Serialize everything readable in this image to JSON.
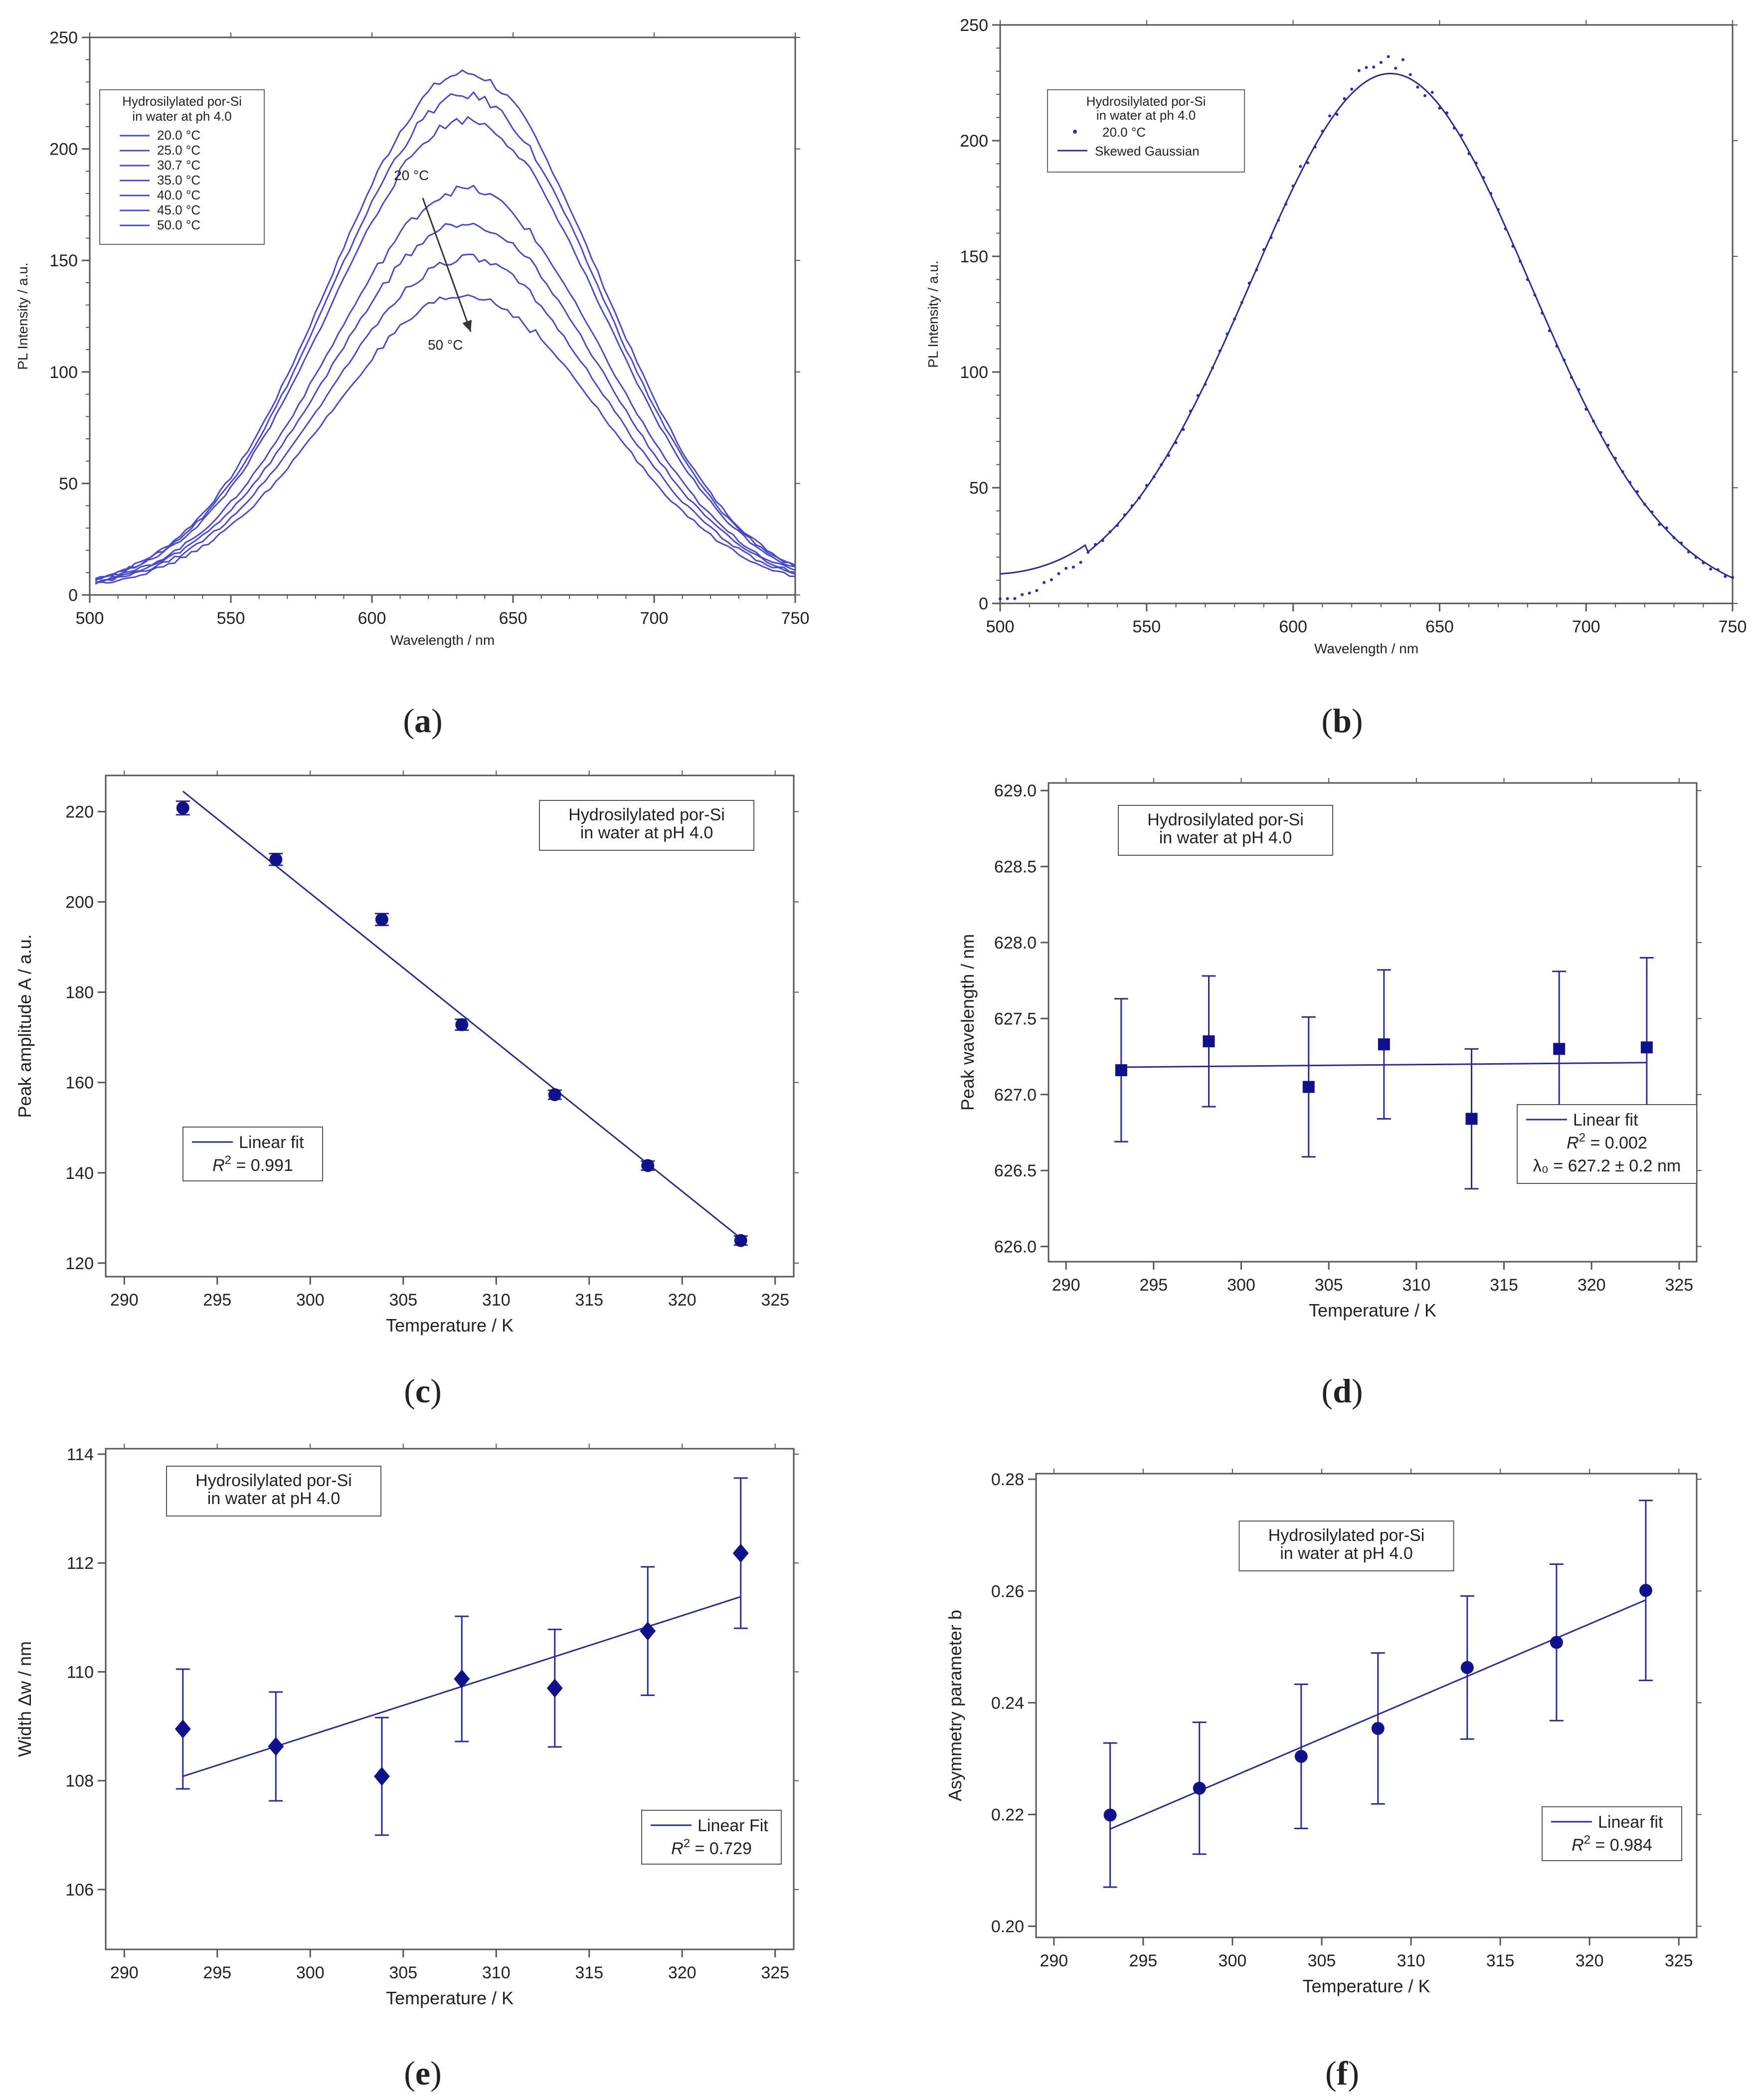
{
  "figure": {
    "panels_order": [
      "a",
      "b",
      "c",
      "d",
      "e",
      "f"
    ]
  },
  "chart_data": [
    {
      "id": "a",
      "caption": {
        "open": "(",
        "letter": "a",
        "close": ")"
      },
      "type": "line",
      "xlabel": "Wavelength / nm",
      "ylabel": "PL Intensity / a.u.",
      "xlim": [
        500,
        750
      ],
      "ylim": [
        0,
        250
      ],
      "xticks": [
        500,
        550,
        600,
        650,
        700,
        750
      ],
      "yticks": [
        0,
        50,
        100,
        150,
        200,
        250
      ],
      "legend": {
        "title_lines": [
          "Hydrosilylated por-Si",
          "in water at ph 4.0"
        ],
        "entries": [
          "20.0 °C",
          "25.0 °C",
          "30.7 °C",
          "35.0 °C",
          "40.0 °C",
          "45.0 °C",
          "50.0 °C"
        ],
        "placement": "top-left"
      },
      "annotations": [
        {
          "text": "20 °C",
          "x": 614,
          "y": 186
        },
        {
          "text": "50 °C",
          "x": 626,
          "y": 110
        }
      ],
      "arrow": {
        "from": [
          618,
          178
        ],
        "to": [
          635,
          118
        ]
      },
      "spectra": {
        "center": 627,
        "sigma": 48,
        "skew": 0.22,
        "amplitudes": [
          232,
          222,
          211,
          180,
          165,
          149,
          132
        ]
      },
      "color": "#4a4ac8"
    },
    {
      "id": "b",
      "caption": {
        "open": "(",
        "letter": "b",
        "close": ")"
      },
      "type": "line",
      "xlabel": "Wavelength / nm",
      "ylabel": "PL Intensity / a.u.",
      "xlim": [
        500,
        750
      ],
      "ylim": [
        0,
        250
      ],
      "xticks": [
        500,
        550,
        600,
        650,
        700,
        750
      ],
      "yticks": [
        0,
        50,
        100,
        150,
        200,
        250
      ],
      "legend": {
        "title_lines": [
          "Hydrosilylated por-Si",
          "in water at ph 4.0"
        ],
        "entries": [
          "20.0 °C",
          "Skewed Gaussian"
        ],
        "placement": "top-left"
      },
      "fit": {
        "center": 627,
        "sigma": 48,
        "skew": 0.22,
        "amplitude": 229,
        "baseline": 0
      },
      "color": "#2b2b8f"
    },
    {
      "id": "c",
      "caption": {
        "open": "(",
        "letter": "c",
        "close": ")"
      },
      "type": "scatter",
      "xlabel": "Temperature / K",
      "ylabel": "Peak amplitude A / a.u.",
      "xlim": [
        289,
        326
      ],
      "ylim": [
        117,
        228
      ],
      "xticks": [
        290,
        295,
        300,
        305,
        310,
        315,
        320,
        325
      ],
      "yticks": [
        120,
        140,
        160,
        180,
        200,
        220
      ],
      "marker": "circle",
      "points": [
        {
          "x": 293.15,
          "y": 220.8,
          "err": 1.5
        },
        {
          "x": 298.15,
          "y": 209.4,
          "err": 1.3
        },
        {
          "x": 303.85,
          "y": 196.1,
          "err": 1.3
        },
        {
          "x": 308.15,
          "y": 172.8,
          "err": 1.2
        },
        {
          "x": 313.15,
          "y": 157.3,
          "err": 1.0
        },
        {
          "x": 318.15,
          "y": 141.6,
          "err": 1.0
        },
        {
          "x": 323.15,
          "y": 125.0,
          "err": 1.0
        }
      ],
      "fit": {
        "x": [
          293.15,
          323.15
        ],
        "y": [
          224.5,
          125.5
        ]
      },
      "box": {
        "lines": [
          "Hydrosilylated por-Si",
          "in water at pH 4.0"
        ],
        "placement": "top-right"
      },
      "fitlegend": {
        "label": "Linear fit",
        "r2_prefix": "R",
        "r2_exp": "2",
        "r2_value": " = 0.991",
        "placement": "lower-left"
      }
    },
    {
      "id": "d",
      "caption": {
        "open": "(",
        "letter": "d",
        "close": ")"
      },
      "type": "scatter",
      "xlabel": "Temperature / K",
      "ylabel": "Peak wavelength / nm",
      "xlim": [
        289,
        326
      ],
      "ylim": [
        625.9,
        629.05
      ],
      "xticks": [
        290,
        295,
        300,
        305,
        310,
        315,
        320,
        325
      ],
      "yticks": [
        626.0,
        626.5,
        627.0,
        627.5,
        628.0,
        628.5,
        629.0
      ],
      "ytick_labels": [
        "626.0",
        "626.5",
        "627.0",
        "627.5",
        "628.0",
        "628.5",
        "629.0"
      ],
      "marker": "square",
      "points": [
        {
          "x": 293.15,
          "y": 627.16,
          "err": 0.47
        },
        {
          "x": 298.15,
          "y": 627.35,
          "err": 0.43
        },
        {
          "x": 303.85,
          "y": 627.05,
          "err": 0.46
        },
        {
          "x": 308.15,
          "y": 627.33,
          "err": 0.49
        },
        {
          "x": 313.15,
          "y": 626.84,
          "err": 0.46
        },
        {
          "x": 318.15,
          "y": 627.3,
          "err": 0.51
        },
        {
          "x": 323.15,
          "y": 627.31,
          "err": 0.59
        }
      ],
      "fit": {
        "x": [
          293.15,
          323.15
        ],
        "y": [
          627.18,
          627.21
        ]
      },
      "box": {
        "lines": [
          "Hydrosilylated por-Si",
          "in water at pH 4.0"
        ],
        "placement": "top-left"
      },
      "fitlegend": {
        "label": "Linear fit",
        "r2_prefix": "R",
        "r2_exp": "2",
        "r2_value": " = 0.002",
        "extra": "λ₀ = 627.2 ± 0.2 nm",
        "placement": "lower-right"
      }
    },
    {
      "id": "e",
      "caption": {
        "open": "(",
        "letter": "e",
        "close": ")"
      },
      "type": "scatter",
      "xlabel": "Temperature / K",
      "ylabel": "Width Δw / nm",
      "xlim": [
        289,
        326
      ],
      "ylim": [
        104.9,
        114.1
      ],
      "xticks": [
        290,
        295,
        300,
        305,
        310,
        315,
        320,
        325
      ],
      "yticks": [
        106,
        108,
        110,
        112,
        114
      ],
      "marker": "diamond",
      "points": [
        {
          "x": 293.15,
          "y": 108.95,
          "err": 1.1
        },
        {
          "x": 298.15,
          "y": 108.63,
          "err": 1.0
        },
        {
          "x": 303.85,
          "y": 108.08,
          "err": 1.08
        },
        {
          "x": 308.15,
          "y": 109.87,
          "err": 1.15
        },
        {
          "x": 313.15,
          "y": 109.7,
          "err": 1.08
        },
        {
          "x": 318.15,
          "y": 110.75,
          "err": 1.18
        },
        {
          "x": 323.15,
          "y": 112.18,
          "err": 1.38
        }
      ],
      "fit": {
        "x": [
          293.15,
          323.15
        ],
        "y": [
          108.08,
          111.38
        ]
      },
      "box": {
        "lines": [
          "Hydrosilylated por-Si",
          "in water at pH 4.0"
        ],
        "placement": "top-left"
      },
      "fitlegend": {
        "label": "Linear Fit",
        "r2_prefix": "R",
        "r2_exp": "2",
        "r2_value": " = 0.729",
        "placement": "lower-right"
      }
    },
    {
      "id": "f",
      "caption": {
        "open": "(",
        "letter": "f",
        "close": ")"
      },
      "type": "scatter",
      "xlabel": "Temperature / K",
      "ylabel": "Asymmetry parameter b",
      "xlim": [
        289,
        326
      ],
      "ylim": [
        0.198,
        0.281
      ],
      "xticks": [
        290,
        295,
        300,
        305,
        310,
        315,
        320,
        325
      ],
      "yticks": [
        0.2,
        0.22,
        0.24,
        0.26,
        0.28
      ],
      "ytick_labels": [
        "0.20",
        "0.22",
        "0.24",
        "0.26",
        "0.28"
      ],
      "marker": "circle",
      "points": [
        {
          "x": 293.15,
          "y": 0.2199,
          "err": 0.0129
        },
        {
          "x": 298.15,
          "y": 0.2247,
          "err": 0.0118
        },
        {
          "x": 303.85,
          "y": 0.2304,
          "err": 0.0129
        },
        {
          "x": 308.15,
          "y": 0.2354,
          "err": 0.0135
        },
        {
          "x": 313.15,
          "y": 0.2463,
          "err": 0.0128
        },
        {
          "x": 318.15,
          "y": 0.2508,
          "err": 0.014
        },
        {
          "x": 323.15,
          "y": 0.2601,
          "err": 0.0161
        }
      ],
      "fit": {
        "x": [
          293.15,
          323.15
        ],
        "y": [
          0.2174,
          0.2584
        ]
      },
      "box": {
        "lines": [
          "Hydrosilylated por-Si",
          "in water at pH 4.0"
        ],
        "placement": "top-center"
      },
      "fitlegend": {
        "label": "Linear fit",
        "r2_prefix": "R",
        "r2_exp": "2",
        "r2_value": " = 0.984",
        "placement": "lower-right"
      }
    }
  ]
}
